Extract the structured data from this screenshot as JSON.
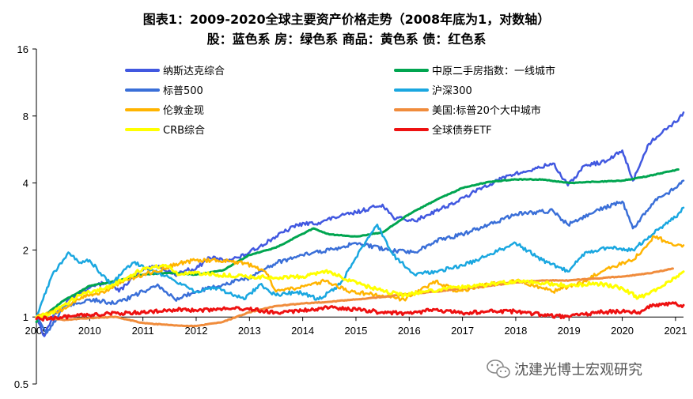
{
  "chart_data": {
    "type": "line",
    "title": "图表1：2009-2020全球主要资产价格走势（2008年底为1，对数轴）",
    "subtitle": "股：蓝色系    房：绿色系    商品：黄色系    债：红色系",
    "y_scale": "log2",
    "ylim": [
      0.5,
      16
    ],
    "y_ticks": [
      "16",
      "8",
      "4",
      "2",
      "1",
      "0.5"
    ],
    "y_tick_values": [
      16,
      8,
      4,
      2,
      1,
      0.5
    ],
    "x_ticks": [
      "2009",
      "2010",
      "2011",
      "2012",
      "2013",
      "2014",
      "2015",
      "2016",
      "2017",
      "2018",
      "2019",
      "2020",
      "2021"
    ],
    "x_tick_values": [
      2009,
      2010,
      2011,
      2012,
      2013,
      2014,
      2015,
      2016,
      2017,
      2018,
      2019,
      2020,
      2021
    ],
    "xlim": [
      2009,
      2021.15
    ],
    "grid": false,
    "legend_position": "top-inside",
    "series": [
      {
        "name": "纳斯达克综合",
        "color": "#4158e0",
        "width": 2.5,
        "points": [
          [
            2009,
            1.0
          ],
          [
            2009.15,
            0.82
          ],
          [
            2009.3,
            1.0
          ],
          [
            2009.6,
            1.2
          ],
          [
            2010,
            1.35
          ],
          [
            2010.35,
            1.45
          ],
          [
            2010.55,
            1.3
          ],
          [
            2010.8,
            1.5
          ],
          [
            2011,
            1.62
          ],
          [
            2011.3,
            1.7
          ],
          [
            2011.6,
            1.55
          ],
          [
            2011.8,
            1.62
          ],
          [
            2012,
            1.65
          ],
          [
            2012.25,
            1.85
          ],
          [
            2012.5,
            1.8
          ],
          [
            2012.8,
            1.85
          ],
          [
            2013,
            1.95
          ],
          [
            2013.5,
            2.3
          ],
          [
            2013.9,
            2.6
          ],
          [
            2014.3,
            2.65
          ],
          [
            2014.6,
            2.8
          ],
          [
            2015,
            2.95
          ],
          [
            2015.5,
            3.2
          ],
          [
            2015.7,
            2.8
          ],
          [
            2016.1,
            2.7
          ],
          [
            2016.5,
            3.0
          ],
          [
            2016.9,
            3.3
          ],
          [
            2017.4,
            3.85
          ],
          [
            2017.9,
            4.35
          ],
          [
            2018.2,
            4.5
          ],
          [
            2018.7,
            4.9
          ],
          [
            2018.98,
            3.9
          ],
          [
            2019.3,
            4.8
          ],
          [
            2019.7,
            5.0
          ],
          [
            2020.0,
            5.6
          ],
          [
            2020.2,
            4.1
          ],
          [
            2020.5,
            6.0
          ],
          [
            2020.8,
            7.0
          ],
          [
            2021.0,
            7.5
          ],
          [
            2021.15,
            8.3
          ]
        ]
      },
      {
        "name": "中原二手房指数：一线城市",
        "color": "#00a550",
        "width": 3,
        "points": [
          [
            2009,
            0.95
          ],
          [
            2009.5,
            1.18
          ],
          [
            2010,
            1.38
          ],
          [
            2010.5,
            1.45
          ],
          [
            2011,
            1.55
          ],
          [
            2011.5,
            1.58
          ],
          [
            2012,
            1.55
          ],
          [
            2012.5,
            1.62
          ],
          [
            2013,
            1.9
          ],
          [
            2013.5,
            2.05
          ],
          [
            2013.9,
            2.3
          ],
          [
            2014.2,
            2.5
          ],
          [
            2014.5,
            2.35
          ],
          [
            2015,
            2.3
          ],
          [
            2015.5,
            2.4
          ],
          [
            2016,
            2.9
          ],
          [
            2016.5,
            3.35
          ],
          [
            2017,
            3.8
          ],
          [
            2017.5,
            4.05
          ],
          [
            2018,
            4.15
          ],
          [
            2018.5,
            4.15
          ],
          [
            2019,
            4.0
          ],
          [
            2019.5,
            4.05
          ],
          [
            2020,
            4.1
          ],
          [
            2020.5,
            4.3
          ],
          [
            2021.05,
            4.6
          ]
        ]
      },
      {
        "name": "标普500",
        "color": "#3a6fd8",
        "width": 2.5,
        "points": [
          [
            2009,
            1.0
          ],
          [
            2009.2,
            0.85
          ],
          [
            2009.5,
            1.1
          ],
          [
            2010,
            1.2
          ],
          [
            2010.5,
            1.15
          ],
          [
            2011,
            1.3
          ],
          [
            2011.3,
            1.38
          ],
          [
            2011.6,
            1.2
          ],
          [
            2012,
            1.3
          ],
          [
            2012.5,
            1.4
          ],
          [
            2013,
            1.5
          ],
          [
            2013.5,
            1.75
          ],
          [
            2014,
            1.9
          ],
          [
            2014.5,
            2.0
          ],
          [
            2015,
            2.15
          ],
          [
            2015.6,
            2.0
          ],
          [
            2016.1,
            1.95
          ],
          [
            2016.5,
            2.2
          ],
          [
            2017,
            2.35
          ],
          [
            2017.5,
            2.6
          ],
          [
            2018,
            2.9
          ],
          [
            2018.7,
            3.0
          ],
          [
            2018.98,
            2.6
          ],
          [
            2019.5,
            3.0
          ],
          [
            2020,
            3.3
          ],
          [
            2020.2,
            2.5
          ],
          [
            2020.6,
            3.3
          ],
          [
            2021,
            3.8
          ],
          [
            2021.15,
            4.1
          ]
        ]
      },
      {
        "name": "沪深300",
        "color": "#1aa7e0",
        "width": 2.5,
        "points": [
          [
            2009,
            1.0
          ],
          [
            2009.3,
            1.55
          ],
          [
            2009.6,
            1.95
          ],
          [
            2009.8,
            1.75
          ],
          [
            2010,
            1.8
          ],
          [
            2010.4,
            1.4
          ],
          [
            2010.8,
            1.75
          ],
          [
            2011,
            1.7
          ],
          [
            2011.5,
            1.5
          ],
          [
            2012,
            1.3
          ],
          [
            2012.4,
            1.35
          ],
          [
            2012.9,
            1.2
          ],
          [
            2013.2,
            1.4
          ],
          [
            2013.5,
            1.25
          ],
          [
            2013.9,
            1.3
          ],
          [
            2014.3,
            1.2
          ],
          [
            2014.7,
            1.4
          ],
          [
            2015,
            1.85
          ],
          [
            2015.4,
            2.6
          ],
          [
            2015.7,
            1.9
          ],
          [
            2016.1,
            1.55
          ],
          [
            2016.5,
            1.6
          ],
          [
            2017,
            1.7
          ],
          [
            2017.5,
            1.9
          ],
          [
            2018,
            2.15
          ],
          [
            2018.5,
            1.8
          ],
          [
            2018.98,
            1.6
          ],
          [
            2019.3,
            1.95
          ],
          [
            2019.8,
            2.05
          ],
          [
            2020.2,
            2.0
          ],
          [
            2020.5,
            2.3
          ],
          [
            2020.8,
            2.6
          ],
          [
            2021.0,
            2.8
          ],
          [
            2021.15,
            3.1
          ]
        ]
      },
      {
        "name": "伦敦金现",
        "color": "#ffb400",
        "width": 2.5,
        "points": [
          [
            2009,
            1.0
          ],
          [
            2009.5,
            1.08
          ],
          [
            2009.9,
            1.25
          ],
          [
            2010.3,
            1.3
          ],
          [
            2010.6,
            1.45
          ],
          [
            2011,
            1.55
          ],
          [
            2011.4,
            1.65
          ],
          [
            2011.7,
            1.75
          ],
          [
            2012,
            1.8
          ],
          [
            2012.4,
            1.8
          ],
          [
            2012.9,
            1.75
          ],
          [
            2013.3,
            1.6
          ],
          [
            2013.5,
            1.3
          ],
          [
            2013.9,
            1.35
          ],
          [
            2014.4,
            1.45
          ],
          [
            2014.9,
            1.3
          ],
          [
            2015.5,
            1.25
          ],
          [
            2015.9,
            1.2
          ],
          [
            2016.5,
            1.45
          ],
          [
            2016.9,
            1.3
          ],
          [
            2017.5,
            1.4
          ],
          [
            2018.1,
            1.45
          ],
          [
            2018.7,
            1.3
          ],
          [
            2019.3,
            1.45
          ],
          [
            2019.7,
            1.65
          ],
          [
            2020.2,
            1.8
          ],
          [
            2020.6,
            2.3
          ],
          [
            2020.9,
            2.15
          ],
          [
            2021.15,
            2.1
          ]
        ]
      },
      {
        "name": "美国:标普20个大中城市",
        "color": "#f08c3c",
        "width": 3,
        "points": [
          [
            2009,
            1.0
          ],
          [
            2009.5,
            0.97
          ],
          [
            2010,
            0.99
          ],
          [
            2010.5,
            1.0
          ],
          [
            2011,
            0.94
          ],
          [
            2011.5,
            0.92
          ],
          [
            2012,
            0.91
          ],
          [
            2012.5,
            0.95
          ],
          [
            2013,
            1.05
          ],
          [
            2013.5,
            1.12
          ],
          [
            2014,
            1.15
          ],
          [
            2014.5,
            1.17
          ],
          [
            2015,
            1.2
          ],
          [
            2015.5,
            1.23
          ],
          [
            2016,
            1.27
          ],
          [
            2016.5,
            1.3
          ],
          [
            2017,
            1.34
          ],
          [
            2017.5,
            1.38
          ],
          [
            2018,
            1.43
          ],
          [
            2018.5,
            1.46
          ],
          [
            2019,
            1.46
          ],
          [
            2019.5,
            1.49
          ],
          [
            2020,
            1.52
          ],
          [
            2020.5,
            1.57
          ],
          [
            2020.95,
            1.65
          ]
        ]
      },
      {
        "name": "CRB综合",
        "color": "#ffff00",
        "width": 3,
        "points": [
          [
            2009,
            1.0
          ],
          [
            2009.3,
            1.05
          ],
          [
            2009.8,
            1.25
          ],
          [
            2010.3,
            1.35
          ],
          [
            2010.7,
            1.5
          ],
          [
            2011,
            1.65
          ],
          [
            2011.4,
            1.7
          ],
          [
            2011.7,
            1.55
          ],
          [
            2012,
            1.58
          ],
          [
            2012.4,
            1.55
          ],
          [
            2012.9,
            1.52
          ],
          [
            2013.5,
            1.5
          ],
          [
            2014,
            1.52
          ],
          [
            2014.5,
            1.6
          ],
          [
            2014.9,
            1.45
          ],
          [
            2015.3,
            1.35
          ],
          [
            2015.9,
            1.25
          ],
          [
            2016.3,
            1.3
          ],
          [
            2016.8,
            1.35
          ],
          [
            2017.5,
            1.4
          ],
          [
            2018,
            1.45
          ],
          [
            2018.5,
            1.42
          ],
          [
            2019,
            1.38
          ],
          [
            2019.5,
            1.42
          ],
          [
            2020.0,
            1.35
          ],
          [
            2020.3,
            1.22
          ],
          [
            2020.7,
            1.35
          ],
          [
            2021.15,
            1.6
          ]
        ]
      },
      {
        "name": "全球债券ETF",
        "color": "#ee1111",
        "width": 3,
        "points": [
          [
            2009,
            0.98
          ],
          [
            2009.5,
            1.0
          ],
          [
            2010,
            1.02
          ],
          [
            2010.5,
            1.04
          ],
          [
            2011,
            1.05
          ],
          [
            2011.5,
            1.08
          ],
          [
            2012,
            1.07
          ],
          [
            2012.5,
            1.09
          ],
          [
            2013,
            1.08
          ],
          [
            2013.5,
            1.05
          ],
          [
            2014,
            1.07
          ],
          [
            2014.5,
            1.1
          ],
          [
            2015,
            1.08
          ],
          [
            2015.5,
            1.05
          ],
          [
            2016,
            1.04
          ],
          [
            2016.5,
            1.08
          ],
          [
            2017,
            1.04
          ],
          [
            2017.5,
            1.06
          ],
          [
            2018,
            1.06
          ],
          [
            2018.5,
            1.02
          ],
          [
            2019,
            1.0
          ],
          [
            2019.5,
            1.05
          ],
          [
            2020,
            1.06
          ],
          [
            2020.3,
            1.05
          ],
          [
            2020.6,
            1.13
          ],
          [
            2020.9,
            1.15
          ],
          [
            2021.15,
            1.13
          ]
        ]
      }
    ]
  },
  "watermark": {
    "text": "沈建光博士宏观研究",
    "icon": "wechat-icon"
  }
}
